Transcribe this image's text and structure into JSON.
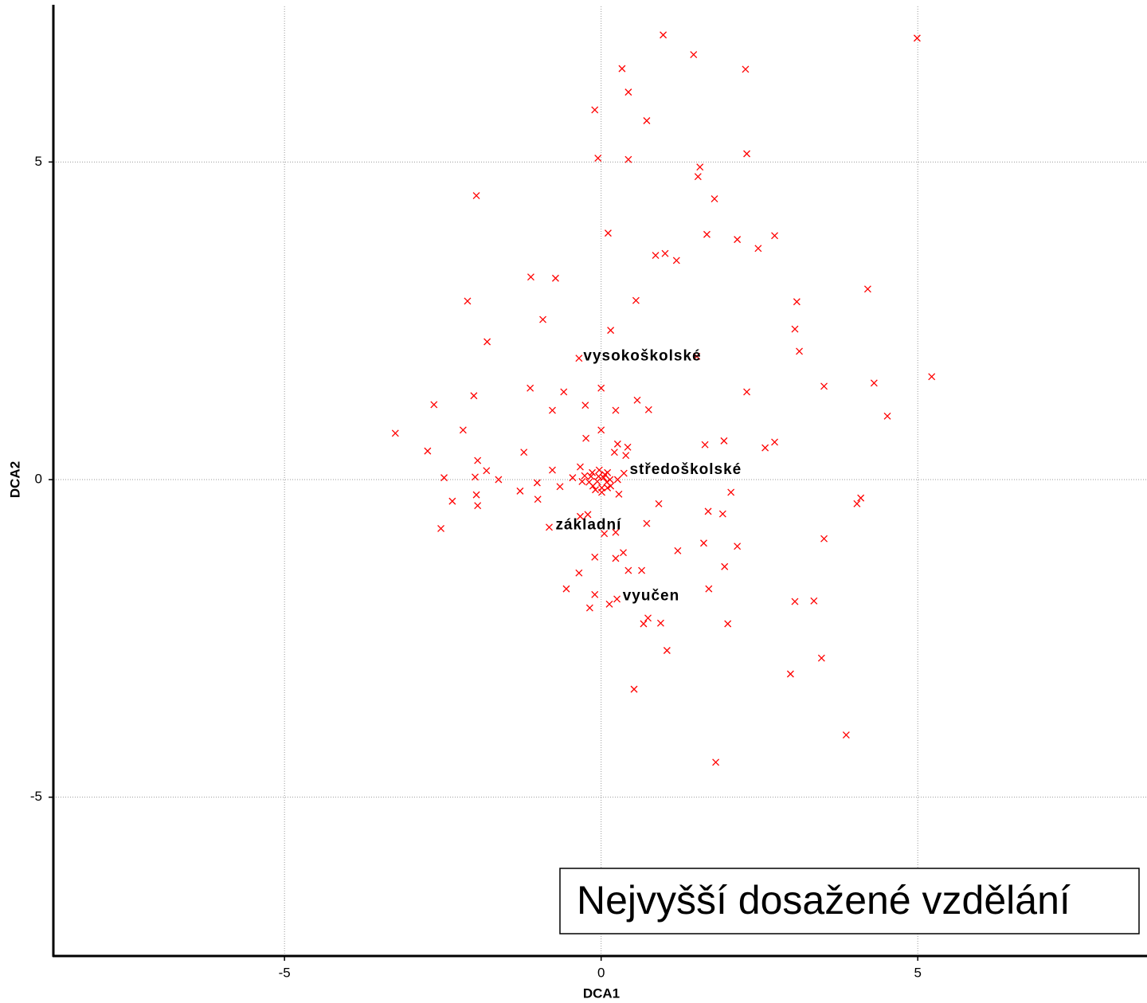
{
  "chart_data": {
    "type": "scatter",
    "xlabel": "DCA1",
    "ylabel": "DCA2",
    "color": "#ff0000",
    "xlim": [
      -8.65,
      8.62
    ],
    "ylim": [
      -7.5,
      7.45
    ],
    "xticks": [
      -5,
      0,
      5
    ],
    "yticks": [
      -5,
      0,
      5
    ],
    "grid": true,
    "box_text": "Nejvyšší dosažené vzdělání",
    "annotations": [
      {
        "text": "vysokoškolské",
        "x": -0.28,
        "y": 1.94
      },
      {
        "text": "středoškolské",
        "x": 0.45,
        "y": 0.15
      },
      {
        "text": "základní",
        "x": -0.72,
        "y": -0.72
      },
      {
        "text": "vyučen",
        "x": 0.34,
        "y": -1.84
      }
    ],
    "x": [
      0.98,
      4.99,
      1.46,
      0.33,
      2.28,
      0.43,
      -0.1,
      0.72,
      2.3,
      -0.05,
      0.43,
      1.56,
      1.53,
      -1.97,
      1.79,
      0.11,
      1.67,
      2.15,
      2.74,
      2.48,
      0.86,
      1.01,
      1.19,
      -1.11,
      -0.72,
      4.21,
      -2.11,
      0.55,
      3.09,
      -0.92,
      3.06,
      0.15,
      -1.8,
      3.13,
      -0.35,
      1.51,
      5.22,
      3.52,
      -1.12,
      0.0,
      4.31,
      2.3,
      -0.59,
      -2.01,
      0.57,
      -2.64,
      -0.25,
      0.75,
      -0.77,
      0.23,
      4.52,
      0.0,
      -2.18,
      -3.25,
      -0.24,
      0.26,
      0.42,
      1.94,
      2.74,
      1.64,
      2.59,
      -2.74,
      -1.22,
      0.21,
      0.39,
      -1.95,
      -0.33,
      -0.77,
      -1.81,
      -2.48,
      -1.99,
      -1.62,
      -0.45,
      -0.26,
      -0.14,
      0.1,
      0.36,
      -1.01,
      -0.65,
      -1.28,
      -1.97,
      -2.35,
      -1.0,
      0.28,
      -1.95,
      0.91,
      2.05,
      4.1,
      4.04,
      1.69,
      1.92,
      -0.21,
      -0.33,
      -2.53,
      -0.82,
      0.72,
      0.05,
      0.23,
      3.52,
      1.62,
      2.15,
      1.21,
      0.35,
      -0.1,
      0.23,
      1.95,
      0.43,
      0.64,
      -0.35,
      -0.55,
      1.7,
      -0.1,
      0.25,
      0.13,
      3.06,
      3.36,
      -0.18,
      0.74,
      0.67,
      0.94,
      2.0,
      1.04,
      3.48,
      2.99,
      0.52,
      3.87,
      1.81,
      -0.19,
      -0.13,
      -0.06,
      -0.04,
      0.04,
      0.09,
      0.14,
      0.01,
      0.06,
      -0.09,
      0.15,
      0.01,
      -0.16,
      -0.3,
      0.26,
      -0.03,
      0.1
    ],
    "y": [
      7.0,
      6.95,
      6.69,
      6.47,
      6.46,
      6.1,
      5.82,
      5.65,
      5.13,
      5.06,
      5.04,
      4.92,
      4.77,
      4.47,
      4.42,
      3.88,
      3.86,
      3.78,
      3.84,
      3.64,
      3.53,
      3.56,
      3.45,
      3.19,
      3.17,
      3.0,
      2.81,
      2.82,
      2.8,
      2.52,
      2.37,
      2.35,
      2.17,
      2.02,
      1.91,
      1.94,
      1.62,
      1.47,
      1.44,
      1.44,
      1.52,
      1.38,
      1.38,
      1.32,
      1.25,
      1.18,
      1.17,
      1.1,
      1.09,
      1.09,
      1.0,
      0.78,
      0.78,
      0.73,
      0.65,
      0.56,
      0.51,
      0.61,
      0.59,
      0.55,
      0.5,
      0.45,
      0.43,
      0.43,
      0.38,
      0.3,
      0.2,
      0.15,
      0.14,
      0.03,
      0.04,
      0.0,
      0.03,
      0.06,
      0.11,
      0.11,
      0.1,
      -0.05,
      -0.11,
      -0.18,
      -0.24,
      -0.34,
      -0.31,
      -0.23,
      -0.41,
      -0.38,
      -0.2,
      -0.29,
      -0.38,
      -0.5,
      -0.54,
      -0.55,
      -0.58,
      -0.77,
      -0.75,
      -0.69,
      -0.85,
      -0.83,
      -0.93,
      -1.0,
      -1.05,
      -1.12,
      -1.15,
      -1.22,
      -1.24,
      -1.37,
      -1.43,
      -1.43,
      -1.47,
      -1.72,
      -1.72,
      -1.81,
      -1.88,
      -1.96,
      -1.92,
      -1.91,
      -2.02,
      -2.18,
      -2.27,
      -2.26,
      -2.27,
      -2.69,
      -2.81,
      -3.06,
      -3.3,
      -4.02,
      -4.45,
      -0.04,
      -0.1,
      -0.03,
      0.05,
      0.03,
      -0.04,
      0.0,
      -0.13,
      0.08,
      -0.16,
      -0.1,
      -0.2,
      0.05,
      -0.03,
      0.0,
      0.15,
      -0.13
    ]
  }
}
